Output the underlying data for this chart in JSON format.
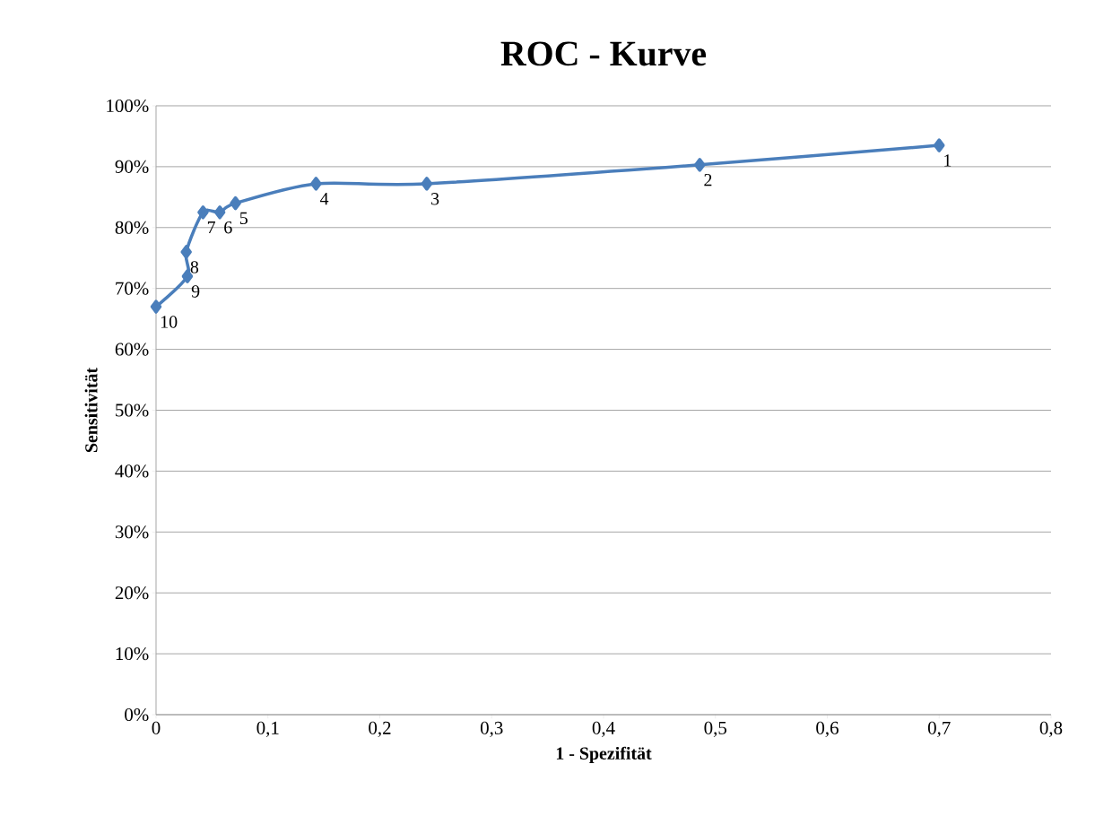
{
  "chart_data": {
    "type": "line",
    "title": "ROC - Kurve",
    "xlabel": "1 - Spezifität",
    "ylabel": "Sensitivität",
    "x": [
      0.7,
      0.486,
      0.242,
      0.143,
      0.071,
      0.057,
      0.042,
      0.027,
      0.028,
      0
    ],
    "values": [
      93.5,
      90.3,
      87.2,
      87.2,
      84.0,
      82.5,
      82.5,
      76.0,
      72.0,
      67.0
    ],
    "annotations": [
      {
        "text": "1",
        "x": 0.7,
        "y": 93.5
      },
      {
        "text": "2",
        "x": 0.486,
        "y": 90.3
      },
      {
        "text": "3",
        "x": 0.242,
        "y": 87.2
      },
      {
        "text": "4",
        "x": 0.143,
        "y": 87.2
      },
      {
        "text": "5",
        "x": 0.071,
        "y": 84.0
      },
      {
        "text": "6",
        "x": 0.057,
        "y": 82.5
      },
      {
        "text": "7",
        "x": 0.042,
        "y": 82.5
      },
      {
        "text": "8",
        "x": 0.027,
        "y": 76.0
      },
      {
        "text": "9",
        "x": 0.028,
        "y": 72.0
      },
      {
        "text": "10",
        "x": 0,
        "y": 67.0
      }
    ],
    "color": "#4a7ebb",
    "marker": "diamond",
    "line_style": "solid",
    "grid": "y",
    "xlim": [
      0,
      0.8
    ],
    "xticks": [
      0,
      {
        "value": 0.1,
        "label": "0,1"
      },
      {
        "value": 0.2,
        "label": "0,2"
      },
      {
        "value": 0.3,
        "label": "0,3"
      },
      {
        "value": 0.4,
        "label": "0,4"
      },
      {
        "value": 0.5,
        "label": "0,5"
      },
      {
        "value": 0.6,
        "label": "0,6"
      },
      {
        "value": 0.7,
        "label": "0,7"
      },
      {
        "value": 0.8,
        "label": "0,8"
      }
    ],
    "ylim": [
      0,
      100
    ],
    "yticks": [
      {
        "value": 0,
        "label": "0%"
      },
      {
        "value": 10,
        "label": "10%"
      },
      {
        "value": 20,
        "label": "20%"
      },
      {
        "value": 30,
        "label": "30%"
      },
      {
        "value": 40,
        "label": "40%"
      },
      {
        "value": 50,
        "label": "50%"
      },
      {
        "value": 60,
        "label": "60%"
      },
      {
        "value": 70,
        "label": "70%"
      },
      {
        "value": 80,
        "label": "80%"
      },
      {
        "value": 90,
        "label": "90%"
      },
      {
        "value": 100,
        "label": "100%"
      }
    ]
  }
}
